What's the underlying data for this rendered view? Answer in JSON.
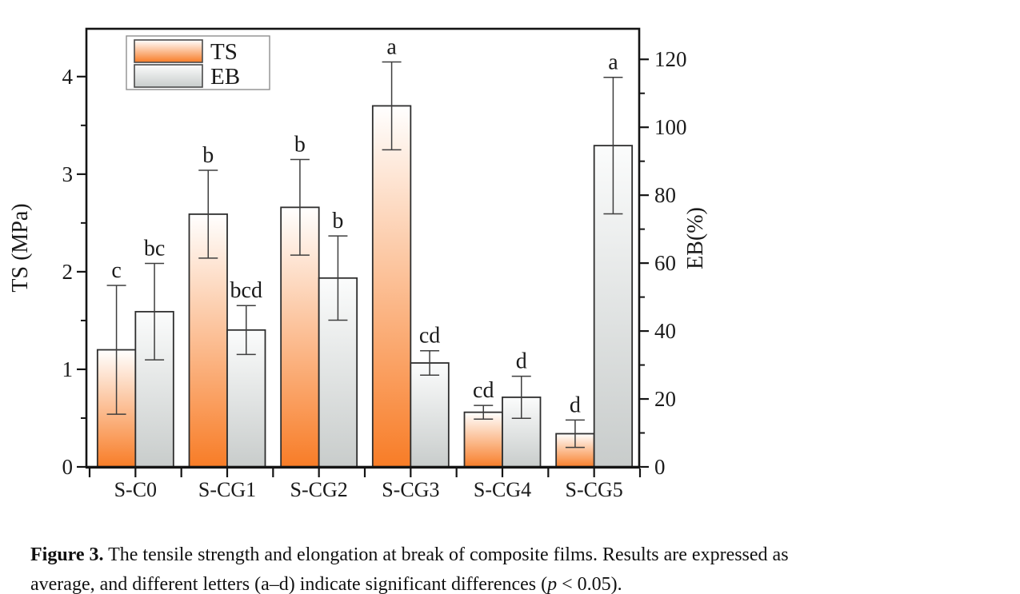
{
  "figure": {
    "caption": {
      "label": "Figure 3.",
      "line1_rest": " The tensile strength and elongation at break of composite films. Results are expressed as",
      "line2_pre": "average, and different letters (a–d) indicate significant differences (",
      "p_var": "p",
      "line2_post": " < 0.05)."
    }
  },
  "chart_data": {
    "type": "bar",
    "title": "",
    "categories": [
      "S-C0",
      "S-CG1",
      "S-CG2",
      "S-CG3",
      "S-CG4",
      "S-CG5"
    ],
    "series": [
      {
        "name": "TS",
        "axis": "left",
        "unit": "MPa",
        "color_top": "#FFFFFF",
        "color_bottom": "#F87C26",
        "values": [
          1.2,
          2.59,
          2.66,
          3.7,
          0.56,
          0.34
        ],
        "errors": [
          0.66,
          0.45,
          0.49,
          0.45,
          0.07,
          0.14
        ],
        "letters": [
          "c",
          "b",
          "b",
          "a",
          "cd",
          "d"
        ]
      },
      {
        "name": "EB",
        "axis": "right",
        "unit": "%",
        "color_top": "#FBFCFC",
        "color_bottom": "#C8CCCB",
        "values": [
          45.7,
          40.3,
          55.6,
          30.6,
          20.5,
          94.6
        ],
        "errors": [
          14.2,
          7.2,
          12.4,
          3.6,
          6.2,
          20.1
        ],
        "letters": [
          "bc",
          "bcd",
          "b",
          "cd",
          "d",
          "a"
        ]
      }
    ],
    "left_axis": {
      "label": "TS (MPa)",
      "ticks": [
        0,
        1,
        2,
        3,
        4
      ],
      "minor_step": 0.5,
      "min": 0,
      "max": 4.49
    },
    "right_axis": {
      "label": "EB(%)",
      "ticks": [
        0,
        20,
        40,
        60,
        80,
        100,
        120
      ],
      "minor_step": 10,
      "min": 0,
      "max": 129
    },
    "legend": {
      "position": "top-left",
      "entries": [
        "TS",
        "EB"
      ]
    },
    "grid": false,
    "error_bars": true,
    "frame_color": "#141414",
    "bar_stroke": "#2e2e2e",
    "error_color": "#3e3e3e"
  }
}
